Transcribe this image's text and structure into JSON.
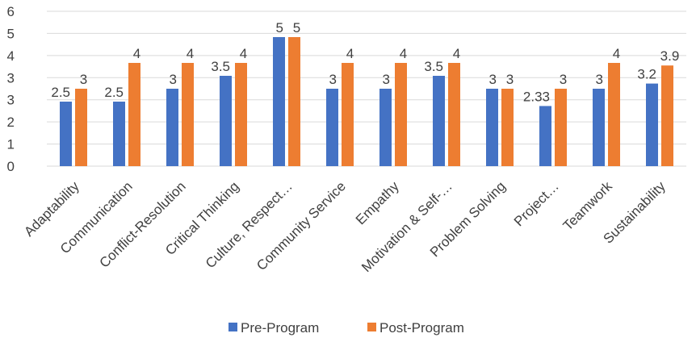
{
  "chart_data": {
    "type": "bar",
    "categories": [
      "Adaptability",
      "Communication",
      "Conflict-Resolution",
      "Critical Thinking",
      "Culture, Respect…",
      "Community Service",
      "Empathy",
      "Motivation & Self-…",
      "Problem Solving",
      "Project…",
      "Teamwork",
      "Sustainability"
    ],
    "series": [
      {
        "name": "Pre-Program",
        "color": "#4472C4",
        "values": [
          2.5,
          2.5,
          3,
          3.5,
          5,
          3,
          3,
          3.5,
          3,
          2.33,
          3,
          3.2
        ]
      },
      {
        "name": "Post-Program",
        "color": "#ED7D31",
        "values": [
          3,
          4,
          4,
          4,
          5,
          4,
          4,
          4,
          3,
          3,
          4,
          3.9
        ]
      }
    ],
    "yticks": [
      "0",
      "1",
      "2",
      "3",
      "3",
      "4",
      "5",
      "6"
    ],
    "ylim": [
      0,
      6
    ],
    "grid": true,
    "legend": "bottom",
    "data_labels": true
  }
}
